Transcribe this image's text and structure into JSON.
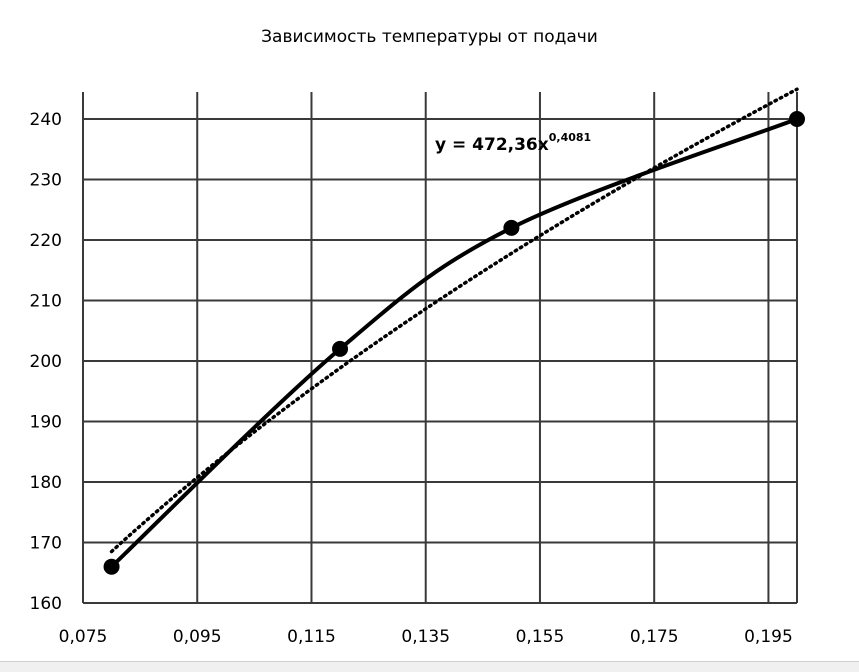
{
  "chart_data": {
    "type": "scatter",
    "title": "Зависимость температуры от подачи",
    "xlabel": "",
    "ylabel": "",
    "xlim": [
      0.075,
      0.2
    ],
    "ylim": [
      160,
      245
    ],
    "x_ticks": [
      0.075,
      0.095,
      0.115,
      0.135,
      0.155,
      0.175,
      0.195
    ],
    "x_tick_labels": [
      "0,075",
      "0,095",
      "0,115",
      "0,135",
      "0,155",
      "0,175",
      "0,195"
    ],
    "y_ticks": [
      160,
      170,
      180,
      190,
      200,
      210,
      220,
      230,
      240
    ],
    "y_tick_labels": [
      "160",
      "170",
      "180",
      "190",
      "200",
      "210",
      "220",
      "230",
      "240"
    ],
    "grid": true,
    "series": [
      {
        "style": "smoothed line with markers",
        "color": "#000000",
        "x": [
          0.08,
          0.12,
          0.15,
          0.2
        ],
        "y": [
          166,
          202,
          222,
          240
        ]
      }
    ],
    "trendline": {
      "type": "power",
      "style": "dotted",
      "color": "#000000",
      "a": 472.36,
      "b": 0.4081,
      "x_range": [
        0.08,
        0.2
      ]
    },
    "equation": {
      "text": "y = 472,36x",
      "exponent": "0,4081"
    }
  }
}
